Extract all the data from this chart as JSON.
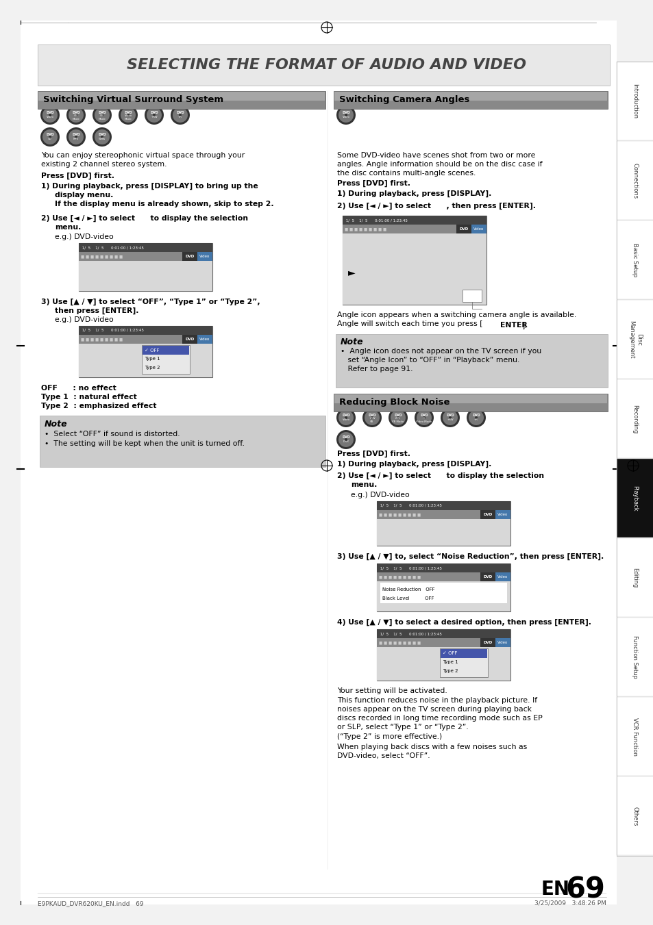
{
  "title_text": "SELECTING THE FORMAT OF AUDIO AND VIDEO",
  "section1_title": "Switching Virtual Surround System",
  "section2_title": "Switching Camera Angles",
  "section3_title": "Reducing Block Noise",
  "footer_left": "E9PKAUD_DVR620KU_EN.indd   69",
  "footer_right": "3/25/2009   3:48:26 PM",
  "sidebar_sections": [
    "Introduction",
    "Connections",
    "Basic Setup",
    "Disc\nManagement",
    "Recording",
    "Playback",
    "Editing",
    "Function Setup",
    "VCR Function",
    "Others"
  ],
  "playback_index": 5
}
